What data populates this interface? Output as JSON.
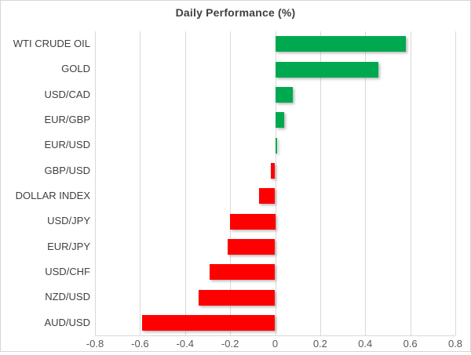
{
  "title": "Daily Performance (%)",
  "colors": {
    "positive": "#00A94F",
    "negative": "#FF0000",
    "gridline": "#D9D9D9",
    "plot_border": "#D9D9D9",
    "frame_border": "#D6D6D6",
    "title_text": "#3F3F3F",
    "label_text": "#404040",
    "tick_text": "#595959"
  },
  "chart_data": {
    "type": "bar",
    "orientation": "horizontal",
    "title": "Daily Performance (%)",
    "categories": [
      "WTI CRUDE OIL",
      "GOLD",
      "USD/CAD",
      "EUR/GBP",
      "EUR/USD",
      "GBP/USD",
      "DOLLAR INDEX",
      "USD/JPY",
      "EUR/JPY",
      "USD/CHF",
      "NZD/USD",
      "AUD/USD"
    ],
    "values": [
      0.58,
      0.46,
      0.08,
      0.04,
      0.01,
      -0.02,
      -0.07,
      -0.2,
      -0.21,
      -0.29,
      -0.34,
      -0.59
    ],
    "xlabel": "",
    "ylabel": "",
    "xlim": [
      -0.8,
      0.8
    ],
    "x_ticks": [
      "-0.8",
      "-0.6",
      "-0.4",
      "-0.2",
      "0",
      "0.2",
      "0.4",
      "0.6",
      "0.8"
    ],
    "grid": true,
    "legend": false
  }
}
